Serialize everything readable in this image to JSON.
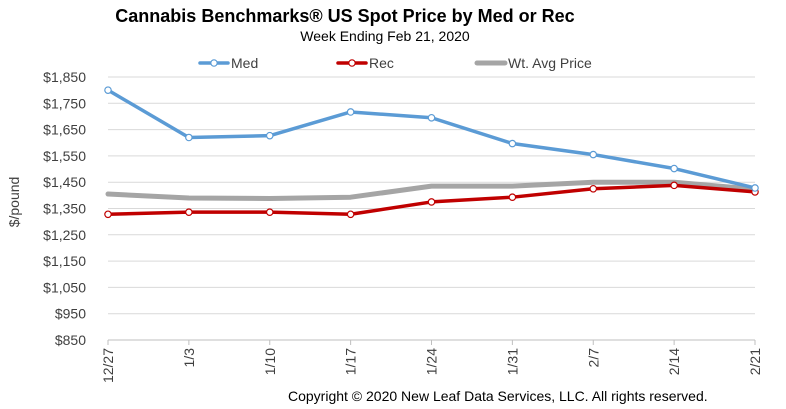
{
  "title": "Cannabis Benchmarks® US Spot Price by Med or Rec",
  "subtitle": "Week Ending Feb 21, 2020",
  "footer": "Copyright © 2020 New Leaf Data Services, LLC. All rights reserved.",
  "chart_data": {
    "type": "line",
    "title": "Cannabis Benchmarks® US Spot Price by Med or Rec",
    "subtitle": "Week Ending Feb 21, 2020",
    "xlabel": "",
    "ylabel": "$/pound",
    "categories": [
      "12/27",
      "1/3",
      "1/10",
      "1/17",
      "1/24",
      "1/31",
      "2/7",
      "2/14",
      "2/21"
    ],
    "ylim": [
      850,
      1850
    ],
    "yticks": [
      850,
      950,
      1050,
      1150,
      1250,
      1350,
      1450,
      1550,
      1650,
      1750,
      1850
    ],
    "ytick_labels": [
      "$850",
      "$950",
      "$1,050",
      "$1,150",
      "$1,250",
      "$1,350",
      "$1,450",
      "$1,550",
      "$1,650",
      "$1,750",
      "$1,850"
    ],
    "grid": true,
    "legend_position": "top",
    "series": [
      {
        "name": "Med",
        "color": "#5B9BD5",
        "markers": true,
        "values": [
          1800,
          1620,
          1627,
          1717,
          1695,
          1597,
          1555,
          1502,
          1428
        ]
      },
      {
        "name": "Rec",
        "color": "#C00000",
        "markers": true,
        "values": [
          1328,
          1336,
          1336,
          1328,
          1375,
          1393,
          1425,
          1438,
          1413
        ]
      },
      {
        "name": "Wt. Avg Price",
        "color": "#A5A5A5",
        "markers": false,
        "values": [
          1405,
          1390,
          1388,
          1393,
          1435,
          1435,
          1450,
          1450,
          1423
        ]
      }
    ]
  }
}
